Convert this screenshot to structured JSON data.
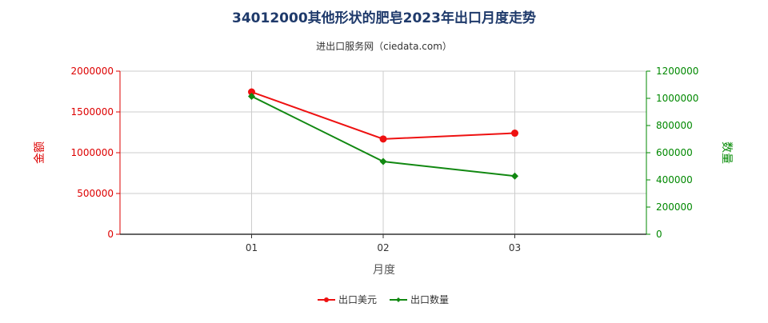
{
  "chart_data": {
    "type": "line",
    "title": "34012000其他形状的肥皂2023年出口月度走势",
    "subtitle": "进出口服务网（ciedata.com）",
    "xlabel": "月度",
    "ylabel_left": "金额",
    "ylabel_right": "数量",
    "categories": [
      "01",
      "02",
      "03"
    ],
    "ylim_left": [
      0,
      2000000
    ],
    "ylim_right": [
      0,
      1200000
    ],
    "yticks_left": [
      "0",
      "500000",
      "1000000",
      "1500000",
      "2000000"
    ],
    "yticks_right": [
      "0",
      "200000",
      "400000",
      "600000",
      "800000",
      "1000000",
      "1200000"
    ],
    "grid": true,
    "legend_position": "bottom-center",
    "series": [
      {
        "name": "出口美元",
        "axis": "left",
        "color": "#ee1111",
        "marker": "circle",
        "values": [
          1745000,
          1168000,
          1240000
        ]
      },
      {
        "name": "出口数量",
        "axis": "right",
        "color": "#118811",
        "marker": "diamond",
        "values": [
          1015000,
          535000,
          428000
        ]
      }
    ]
  },
  "colors": {
    "title": "#1f3a6b",
    "left_axis": "#dd0000",
    "right_axis": "#008800",
    "grid": "#cccccc"
  }
}
